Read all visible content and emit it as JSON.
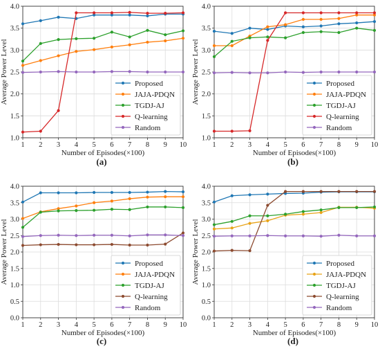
{
  "chart_data": [
    {
      "panel": "(a)",
      "type": "line",
      "xlabel": "Number of Episodes(×100)",
      "ylabel": "Average Power Level",
      "x": [
        1,
        2,
        3,
        4,
        5,
        6,
        7,
        8,
        9,
        10
      ],
      "xlim": [
        1,
        10
      ],
      "ylim": [
        1.0,
        4.0
      ],
      "yticks": [
        "1.0",
        "1.5",
        "2.0",
        "2.5",
        "3.0",
        "3.5",
        "4.0"
      ],
      "grid": true,
      "legend_position": "bottom-right",
      "series": [
        {
          "name": "Proposed",
          "color": "#1f77b4",
          "values": [
            3.6,
            3.67,
            3.75,
            3.72,
            3.8,
            3.8,
            3.8,
            3.78,
            3.82,
            3.82
          ]
        },
        {
          "name": "JAJA-PDQN",
          "color": "#ff7f0e",
          "values": [
            2.65,
            2.76,
            2.87,
            2.97,
            3.01,
            3.07,
            3.12,
            3.18,
            3.21,
            3.27
          ]
        },
        {
          "name": "TGDJ-AJ",
          "color": "#2ca02c",
          "values": [
            2.75,
            3.15,
            3.24,
            3.26,
            3.27,
            3.41,
            3.3,
            3.45,
            3.35,
            3.44
          ]
        },
        {
          "name": "Q-learning",
          "color": "#d62728",
          "values": [
            1.13,
            1.15,
            1.62,
            3.85,
            3.85,
            3.85,
            3.86,
            3.84,
            3.84,
            3.85
          ]
        },
        {
          "name": "Random",
          "color": "#9467bd",
          "values": [
            2.49,
            2.5,
            2.51,
            2.5,
            2.5,
            2.51,
            2.51,
            2.5,
            2.5,
            2.5
          ]
        }
      ]
    },
    {
      "panel": "(b)",
      "type": "line",
      "xlabel": "Number of Episodes(×100)",
      "ylabel": "Average Power Level",
      "x": [
        1,
        2,
        3,
        4,
        5,
        6,
        7,
        8,
        9,
        10
      ],
      "xlim": [
        1,
        10
      ],
      "ylim": [
        1.0,
        4.0
      ],
      "yticks": [
        "1.0",
        "1.5",
        "2.0",
        "2.5",
        "3.0",
        "3.5",
        "4.0"
      ],
      "grid": true,
      "legend_position": "bottom-right",
      "series": [
        {
          "name": "Proposed",
          "color": "#1f77b4",
          "values": [
            3.43,
            3.38,
            3.5,
            3.47,
            3.55,
            3.53,
            3.55,
            3.6,
            3.62,
            3.65
          ]
        },
        {
          "name": "JAJA-PDQN",
          "color": "#ff7f0e",
          "values": [
            3.1,
            3.1,
            3.32,
            3.53,
            3.58,
            3.7,
            3.7,
            3.72,
            3.8,
            3.8
          ]
        },
        {
          "name": "TGDJ-AJ",
          "color": "#2ca02c",
          "values": [
            2.85,
            3.2,
            3.28,
            3.3,
            3.28,
            3.4,
            3.42,
            3.4,
            3.5,
            3.45
          ]
        },
        {
          "name": "Q-learning",
          "color": "#d62728",
          "values": [
            1.15,
            1.15,
            1.16,
            3.22,
            3.85,
            3.85,
            3.85,
            3.85,
            3.85,
            3.85
          ]
        },
        {
          "name": "Random",
          "color": "#9467bd",
          "values": [
            2.48,
            2.49,
            2.48,
            2.48,
            2.5,
            2.49,
            2.5,
            2.5,
            2.5,
            2.5
          ]
        }
      ]
    },
    {
      "panel": "(c)",
      "type": "line",
      "xlabel": "Number of Episodes(×100)",
      "ylabel": "Average Power Level",
      "x": [
        1,
        2,
        3,
        4,
        5,
        6,
        7,
        8,
        9,
        10
      ],
      "xlim": [
        1,
        10
      ],
      "ylim": [
        0.0,
        4.0
      ],
      "yticks": [
        "0.0",
        "0.5",
        "1.0",
        "1.5",
        "2.0",
        "2.5",
        "3.0",
        "3.5",
        "4.0"
      ],
      "grid": true,
      "legend_position": "bottom-right",
      "series": [
        {
          "name": "Proposed",
          "color": "#1f77b4",
          "values": [
            3.52,
            3.8,
            3.8,
            3.8,
            3.81,
            3.81,
            3.81,
            3.82,
            3.84,
            3.83
          ]
        },
        {
          "name": "JAJA-PDQN",
          "color": "#ff7f0e",
          "values": [
            3.02,
            3.22,
            3.32,
            3.4,
            3.5,
            3.55,
            3.62,
            3.67,
            3.68,
            3.68
          ]
        },
        {
          "name": "TGDJ-AJ",
          "color": "#2ca02c",
          "values": [
            2.75,
            3.21,
            3.25,
            3.26,
            3.27,
            3.3,
            3.29,
            3.37,
            3.37,
            3.35
          ]
        },
        {
          "name": "Q-learning",
          "color": "#8c4a2f",
          "values": [
            2.2,
            2.22,
            2.23,
            2.22,
            2.22,
            2.23,
            2.21,
            2.21,
            2.24,
            2.58
          ]
        },
        {
          "name": "Random",
          "color": "#9467bd",
          "values": [
            2.47,
            2.5,
            2.51,
            2.5,
            2.51,
            2.51,
            2.49,
            2.52,
            2.52,
            2.5
          ]
        }
      ]
    },
    {
      "panel": "(d)",
      "type": "line",
      "xlabel": "Number of Episodes(×100)",
      "ylabel": "Average Power Level",
      "x": [
        1,
        2,
        3,
        4,
        5,
        6,
        7,
        8,
        9,
        10
      ],
      "xlim": [
        1,
        10
      ],
      "ylim": [
        0.0,
        4.0
      ],
      "yticks": [
        "0.0",
        "0.5",
        "1.0",
        "1.5",
        "2.0",
        "2.5",
        "3.0",
        "3.5",
        "4.0"
      ],
      "grid": true,
      "legend_position": "bottom-right",
      "series": [
        {
          "name": "Proposed",
          "color": "#1f77b4",
          "values": [
            3.52,
            3.71,
            3.74,
            3.76,
            3.78,
            3.79,
            3.82,
            3.83,
            3.83,
            3.83
          ]
        },
        {
          "name": "JAJA-PDQN",
          "color": "#e8a317",
          "values": [
            2.7,
            2.73,
            2.87,
            2.95,
            3.12,
            3.15,
            3.2,
            3.36,
            3.36,
            3.33
          ]
        },
        {
          "name": "TGDJ-AJ",
          "color": "#2ca02c",
          "values": [
            2.83,
            2.93,
            3.1,
            3.1,
            3.15,
            3.23,
            3.28,
            3.35,
            3.35,
            3.37
          ]
        },
        {
          "name": "Q-learning",
          "color": "#8c4a2f",
          "values": [
            2.03,
            2.05,
            2.04,
            3.42,
            3.84,
            3.84,
            3.84,
            3.84,
            3.84,
            3.84
          ]
        },
        {
          "name": "Random",
          "color": "#9467bd",
          "values": [
            2.48,
            2.49,
            2.49,
            2.5,
            2.49,
            2.49,
            2.48,
            2.51,
            2.49,
            2.49
          ]
        }
      ]
    }
  ]
}
